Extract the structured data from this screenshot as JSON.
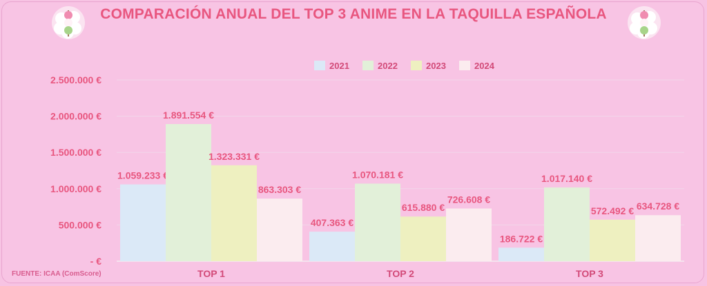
{
  "header": {
    "title": "COMPARACIÓN ANUAL DEL TOP 3 ANIME EN LA TAQUILLA ESPAÑOLA"
  },
  "footer": {
    "source": "FUENTE: ICAA (ComScore)"
  },
  "icons": {
    "left": "dango-flower-icon",
    "right": "dango-flower-icon"
  },
  "colors": {
    "background": "#f8c4e4",
    "title": "#e8567f",
    "gridline": "#f2d6ea",
    "series": [
      "#dbe9f7",
      "#e2f0d9",
      "#eef0c0",
      "#fbecef"
    ]
  },
  "chart_data": {
    "type": "bar",
    "title": "COMPARACIÓN ANUAL DEL TOP 3 ANIME EN LA TAQUILLA ESPAÑOLA",
    "categories": [
      "TOP 1",
      "TOP 2",
      "TOP 3"
    ],
    "series": [
      {
        "name": "2021",
        "values": [
          1059233,
          407363,
          186722
        ],
        "labels": [
          "1.059.233 €",
          "407.363 €",
          "186.722 €"
        ]
      },
      {
        "name": "2022",
        "values": [
          1891554,
          1070181,
          1017140
        ],
        "labels": [
          "1.891.554 €",
          "1.070.181 €",
          "1.017.140 €"
        ]
      },
      {
        "name": "2023",
        "values": [
          1323331,
          615880,
          572492
        ],
        "labels": [
          "1.323.331 €",
          "615.880 €",
          "572.492 €"
        ]
      },
      {
        "name": "2024",
        "values": [
          863303,
          726608,
          634728
        ],
        "labels": [
          "863.303 €",
          "726.608 €",
          "634.728 €"
        ]
      }
    ],
    "ylim": [
      0,
      2500000
    ],
    "yticks": [
      0,
      500000,
      1000000,
      1500000,
      2000000,
      2500000
    ],
    "ytick_labels": [
      "-  €",
      "500.000 €",
      "1.000.000 €",
      "1.500.000 €",
      "2.000.000 €",
      "2.500.000 €"
    ],
    "grid": true,
    "legend_position": "top-center"
  }
}
